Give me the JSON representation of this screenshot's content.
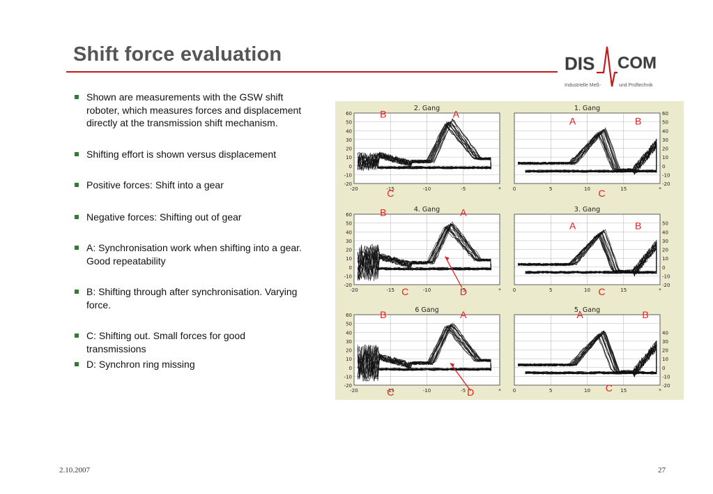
{
  "title": "Shift force evaluation",
  "logo": {
    "part1": "DIS",
    "part2": "COM",
    "tagline_left": "Industrielle Meß-",
    "tagline_right": "und Prüftechnik"
  },
  "bullets": [
    "Shown are measurements with the GSW shift roboter, which measures forces and displacement directly at the transmission shift mechanism.",
    "Shifting effort is shown versus displacement",
    "Positive forces: Shift into a gear",
    "Negative forces: Shifting out of gear",
    "A: Synchronisation work when shifting into a gear. Good repeatability",
    "B: Shifting through after synchronisation. Varying force.",
    "C: Shifting out. Small forces for good transmissions",
    "D: Synchron ring missing"
  ],
  "footer": {
    "date": "2.10.2007",
    "page": "27"
  },
  "colors": {
    "title": "#555555",
    "rule": "#c21b1b",
    "bullet": "#2e7d32",
    "annotation": "#e02020",
    "panel_bg": "#eceacc"
  },
  "chart_data": [
    {
      "type": "line",
      "title": "2. Gang",
      "xlim": [
        -20,
        0
      ],
      "ylim": [
        -20,
        60
      ],
      "xticks": [
        "-20",
        "-15",
        "-10",
        "-5",
        "*"
      ],
      "yticks": [
        "60",
        "50",
        "40",
        "30",
        "20",
        "10",
        "0",
        "-10",
        "-20"
      ],
      "labels": [
        {
          "text": "B",
          "x": -16,
          "y": 55
        },
        {
          "text": "A",
          "x": -6,
          "y": 55
        },
        {
          "text": "C",
          "x": -15,
          "y": -35
        }
      ]
    },
    {
      "type": "line",
      "title": "1. Gang",
      "xlim": [
        0,
        20
      ],
      "ylim": [
        -20,
        60
      ],
      "xticks": [
        "0",
        "5",
        "10",
        "15",
        "*"
      ],
      "yticks": [
        "60",
        "50",
        "40",
        "30",
        "20",
        "10",
        "0",
        "-10",
        "-20"
      ],
      "labels": [
        {
          "text": "A",
          "x": 8,
          "y": 47
        },
        {
          "text": "B",
          "x": 17,
          "y": 47
        },
        {
          "text": "C",
          "x": 12,
          "y": -35
        }
      ]
    },
    {
      "type": "line",
      "title": "4. Gang",
      "xlim": [
        -20,
        0
      ],
      "ylim": [
        -20,
        60
      ],
      "xticks": [
        "-20",
        "-15",
        "-10",
        "-5",
        "*"
      ],
      "yticks": [
        "60",
        "50",
        "40",
        "30",
        "20",
        "10",
        "0",
        "-10",
        "-20"
      ],
      "labels": [
        {
          "text": "B",
          "x": -16,
          "y": 58
        },
        {
          "text": "A",
          "x": -5,
          "y": 58
        },
        {
          "text": "C",
          "x": -13,
          "y": -32
        },
        {
          "text": "D",
          "x": -5,
          "y": -32
        }
      ]
    },
    {
      "type": "line",
      "title": "3. Gang",
      "xlim": [
        0,
        20
      ],
      "ylim": [
        -20,
        60
      ],
      "xticks": [
        "0",
        "5",
        "10",
        "15",
        "*"
      ],
      "yticks": [
        "50",
        "40",
        "30",
        "20",
        "10",
        "0",
        "-10",
        "-20"
      ],
      "labels": [
        {
          "text": "A",
          "x": 8,
          "y": 43
        },
        {
          "text": "B",
          "x": 17,
          "y": 43
        },
        {
          "text": "C",
          "x": 12,
          "y": -32
        }
      ]
    },
    {
      "type": "line",
      "title": "6 Gang",
      "xlim": [
        -20,
        0
      ],
      "ylim": [
        -20,
        60
      ],
      "xticks": [
        "-20",
        "-15",
        "-10",
        "-5",
        "*"
      ],
      "yticks": [
        "60",
        "50",
        "40",
        "30",
        "20",
        "10",
        "0",
        "-10",
        "-20"
      ],
      "labels": [
        {
          "text": "B",
          "x": -16,
          "y": 56
        },
        {
          "text": "A",
          "x": -5,
          "y": 56
        },
        {
          "text": "C",
          "x": -15,
          "y": -32
        },
        {
          "text": "D",
          "x": -4,
          "y": -32
        }
      ]
    },
    {
      "type": "line",
      "title": "5. Gang",
      "xlim": [
        0,
        20
      ],
      "ylim": [
        -20,
        60
      ],
      "xticks": [
        "0",
        "5",
        "10",
        "15",
        "*"
      ],
      "yticks": [
        "40",
        "30",
        "20",
        "10",
        "0",
        "-10",
        "-20"
      ],
      "labels": [
        {
          "text": "A",
          "x": 9,
          "y": 56
        },
        {
          "text": "B",
          "x": 18,
          "y": 56
        },
        {
          "text": "C",
          "x": 13,
          "y": -27
        }
      ]
    }
  ]
}
